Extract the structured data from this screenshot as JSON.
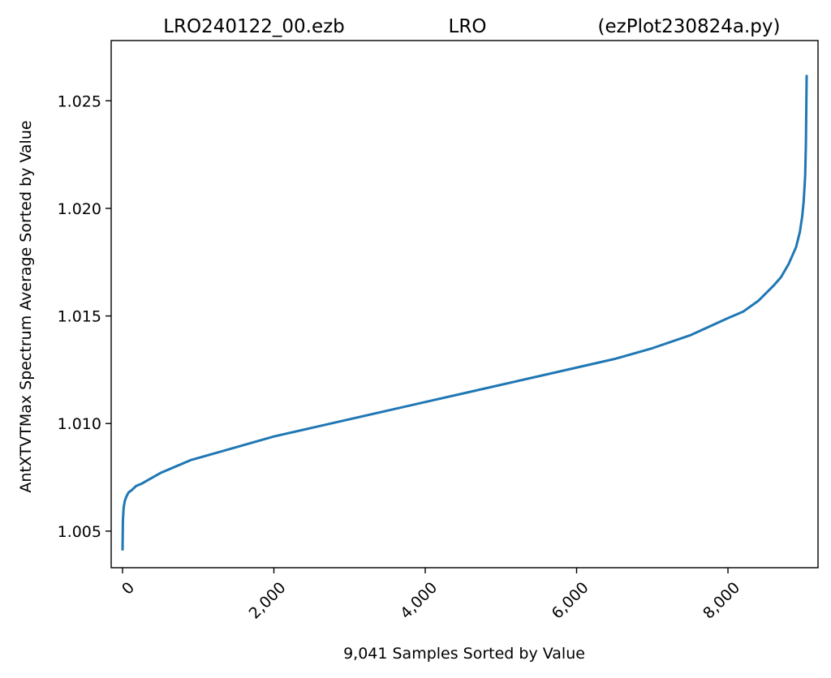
{
  "chart_data": {
    "type": "line",
    "title_parts": [
      "LRO240122_00.ezb",
      "LRO",
      "(ezPlot230824a.py)"
    ],
    "xlabel": "9,041 Samples Sorted by Value",
    "ylabel": "AntXTVTMax Spectrum Average Sorted by Value",
    "xlim": [
      -150,
      9190
    ],
    "ylim": [
      1.0033,
      1.0278
    ],
    "x_ticks": [
      0,
      2000,
      4000,
      6000,
      8000
    ],
    "x_tick_labels": [
      "0",
      "2,000",
      "4,000",
      "6,000",
      "8,000"
    ],
    "y_ticks": [
      1.005,
      1.01,
      1.015,
      1.02,
      1.025
    ],
    "y_tick_labels": [
      "1.005",
      "1.010",
      "1.015",
      "1.020",
      "1.025"
    ],
    "grid": false,
    "line_color": "#1f77b4",
    "series": [
      {
        "x": [
          0,
          5,
          15,
          30,
          50,
          80,
          120,
          180,
          250,
          350,
          500,
          700,
          900,
          1200,
          1600,
          2000,
          2500,
          3000,
          3500,
          4000,
          4500,
          5000,
          5500,
          6000,
          6500,
          7000,
          7500,
          8000,
          8200,
          8400,
          8600,
          8700,
          8800,
          8900,
          8950,
          8980,
          9000,
          9020,
          9030,
          9040
        ],
        "y": [
          1.0041,
          1.0055,
          1.0061,
          1.0064,
          1.0066,
          1.0068,
          1.0069,
          1.0071,
          1.0072,
          1.0074,
          1.0077,
          1.008,
          1.0083,
          1.0086,
          1.009,
          1.0094,
          1.0098,
          1.0102,
          1.0106,
          1.011,
          1.0114,
          1.0118,
          1.0122,
          1.0126,
          1.013,
          1.0135,
          1.0141,
          1.0149,
          1.0152,
          1.0157,
          1.0164,
          1.0168,
          1.0174,
          1.0182,
          1.0189,
          1.0196,
          1.0203,
          1.0215,
          1.023,
          1.0262
        ]
      }
    ]
  }
}
